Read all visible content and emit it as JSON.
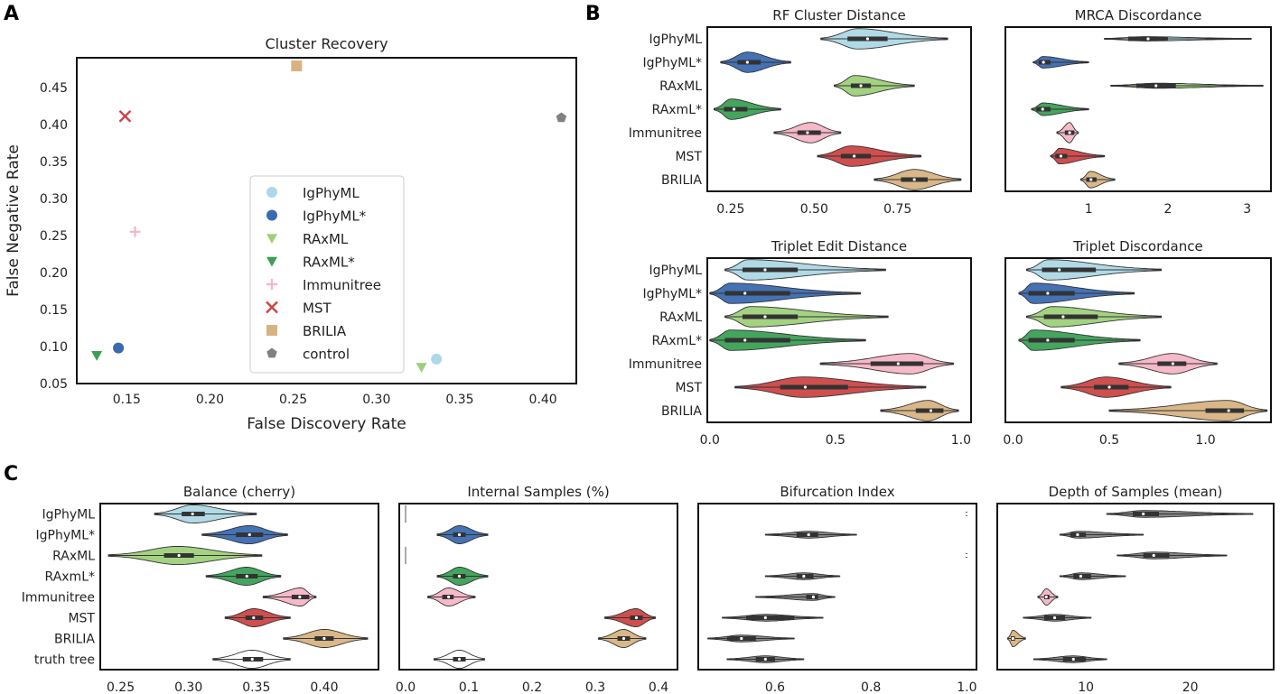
{
  "colors": {
    "IgPhyML": "#add8e6",
    "IgPhyML*": "#3a6ab0",
    "RAxML": "#9ed07a",
    "RAxML*": "#3aa055",
    "Immunitree": "#f6b5c6",
    "MST": "#cc4444",
    "BRILIA": "#d8b382",
    "control": "#808080",
    "truth tree": "#ffffff",
    "frame": "#111111",
    "text": "#222222"
  },
  "chart_data": [
    {
      "id": "A",
      "panel_label": "A",
      "type": "scatter",
      "title": "Cluster Recovery",
      "xlabel": "False Discovery Rate",
      "ylabel": "False Negative Rate",
      "xlim": [
        0.12,
        0.42
      ],
      "ylim": [
        0.05,
        0.49
      ],
      "xticks": [
        "0.15",
        "0.20",
        "0.25",
        "0.30",
        "0.35",
        "0.40"
      ],
      "yticks": [
        "0.05",
        "0.10",
        "0.15",
        "0.20",
        "0.25",
        "0.30",
        "0.35",
        "0.40",
        "0.45"
      ],
      "points": [
        {
          "name": "IgPhyML",
          "x": 0.336,
          "y": 0.083,
          "marker": "circle"
        },
        {
          "name": "IgPhyML*",
          "x": 0.145,
          "y": 0.098,
          "marker": "circle"
        },
        {
          "name": "RAxML",
          "x": 0.327,
          "y": 0.072,
          "marker": "triangle"
        },
        {
          "name": "RAxML*",
          "x": 0.132,
          "y": 0.088,
          "marker": "triangle"
        },
        {
          "name": "Immunitree",
          "x": 0.155,
          "y": 0.255,
          "marker": "plus"
        },
        {
          "name": "MST",
          "x": 0.149,
          "y": 0.411,
          "marker": "x"
        },
        {
          "name": "BRILIA",
          "x": 0.252,
          "y": 0.479,
          "marker": "square"
        },
        {
          "name": "control",
          "x": 0.411,
          "y": 0.409,
          "marker": "pentagon"
        }
      ],
      "legend": [
        "IgPhyML",
        "IgPhyML*",
        "RAxML",
        "RAxML*",
        "Immunitree",
        "MST",
        "BRILIA",
        "control"
      ],
      "legend_position": "center"
    },
    {
      "id": "B1",
      "panel_label": "B",
      "type": "violin",
      "title": "RF Cluster Distance",
      "xlim": [
        0.18,
        0.97
      ],
      "xticks": [
        "0.25",
        "0.50",
        "0.75"
      ],
      "categories": [
        "IgPhyML",
        "IgPhyML*",
        "RAxML",
        "RAxmL*",
        "Immunitree",
        "MST",
        "BRILIA"
      ],
      "series_colors": [
        "IgPhyML",
        "IgPhyML*",
        "RAxML",
        "RAxML*",
        "Immunitree",
        "MST",
        "BRILIA"
      ],
      "violins": [
        {
          "lo": 0.52,
          "q1": 0.6,
          "med": 0.66,
          "q3": 0.72,
          "hi": 0.9,
          "mode": 0.63
        },
        {
          "lo": 0.22,
          "q1": 0.27,
          "med": 0.3,
          "q3": 0.34,
          "hi": 0.43,
          "mode": 0.3
        },
        {
          "lo": 0.56,
          "q1": 0.61,
          "med": 0.64,
          "q3": 0.67,
          "hi": 0.8,
          "mode": 0.62
        },
        {
          "lo": 0.2,
          "q1": 0.23,
          "med": 0.26,
          "q3": 0.3,
          "hi": 0.4,
          "mode": 0.25
        },
        {
          "lo": 0.38,
          "q1": 0.45,
          "med": 0.48,
          "q3": 0.52,
          "hi": 0.58,
          "mode": 0.49
        },
        {
          "lo": 0.51,
          "q1": 0.58,
          "med": 0.62,
          "q3": 0.67,
          "hi": 0.82,
          "mode": 0.61
        },
        {
          "lo": 0.68,
          "q1": 0.76,
          "med": 0.8,
          "q3": 0.84,
          "hi": 0.94,
          "mode": 0.8
        }
      ]
    },
    {
      "id": "B2",
      "type": "violin",
      "title": "MRCA Discordance",
      "xlim": [
        -0.05,
        3.3
      ],
      "xticks": [
        "1",
        "2",
        "3"
      ],
      "categories": [
        "IgPhyML",
        "IgPhyML*",
        "RAxML",
        "RAxmL*",
        "Immunitree",
        "MST",
        "BRILIA"
      ],
      "series_colors": [
        "IgPhyML",
        "IgPhyML*",
        "RAxML",
        "RAxML*",
        "Immunitree",
        "MST",
        "BRILIA"
      ],
      "violins": [
        {
          "lo": 1.2,
          "q1": 1.5,
          "med": 1.75,
          "q3": 2.0,
          "hi": 3.05,
          "mode": 1.7,
          "wscale": 0.18
        },
        {
          "lo": 0.3,
          "q1": 0.37,
          "med": 0.43,
          "q3": 0.52,
          "hi": 1.0,
          "mode": 0.42,
          "wscale": 0.55
        },
        {
          "lo": 1.28,
          "q1": 1.6,
          "med": 1.85,
          "q3": 2.1,
          "hi": 3.2,
          "mode": 1.85,
          "wscale": 0.22
        },
        {
          "lo": 0.28,
          "q1": 0.34,
          "med": 0.42,
          "q3": 0.52,
          "hi": 1.0,
          "mode": 0.42,
          "wscale": 0.6
        },
        {
          "lo": 0.6,
          "q1": 0.7,
          "med": 0.76,
          "q3": 0.82,
          "hi": 0.87,
          "mode": 0.76,
          "wscale": 1.0
        },
        {
          "lo": 0.52,
          "q1": 0.58,
          "med": 0.65,
          "q3": 0.73,
          "hi": 1.2,
          "mode": 0.63,
          "wscale": 0.75
        },
        {
          "lo": 0.9,
          "q1": 0.97,
          "med": 1.03,
          "q3": 1.1,
          "hi": 1.33,
          "mode": 1.02,
          "wscale": 0.8
        }
      ]
    },
    {
      "id": "B3",
      "type": "violin",
      "title": "Triplet Edit Distance",
      "xlim": [
        -0.01,
        1.04
      ],
      "xticks": [
        "0.0",
        "0.5",
        "1.0"
      ],
      "categories": [
        "IgPhyML",
        "IgPhyML*",
        "RAxML",
        "RAxmL*",
        "Immunitree",
        "MST",
        "BRILIA"
      ],
      "series_colors": [
        "IgPhyML",
        "IgPhyML*",
        "RAxML",
        "RAxML*",
        "Immunitree",
        "MST",
        "BRILIA"
      ],
      "violins": [
        {
          "lo": 0.06,
          "q1": 0.13,
          "med": 0.22,
          "q3": 0.35,
          "hi": 0.7,
          "mode": 0.15
        },
        {
          "lo": 0.0,
          "q1": 0.06,
          "med": 0.14,
          "q3": 0.32,
          "hi": 0.6,
          "mode": 0.08
        },
        {
          "lo": 0.06,
          "q1": 0.13,
          "med": 0.22,
          "q3": 0.35,
          "hi": 0.71,
          "mode": 0.16
        },
        {
          "lo": 0.0,
          "q1": 0.06,
          "med": 0.14,
          "q3": 0.32,
          "hi": 0.62,
          "mode": 0.08
        },
        {
          "lo": 0.44,
          "q1": 0.64,
          "med": 0.75,
          "q3": 0.85,
          "hi": 0.97,
          "mode": 0.8
        },
        {
          "lo": 0.1,
          "q1": 0.28,
          "med": 0.38,
          "q3": 0.55,
          "hi": 0.86,
          "mode": 0.37
        },
        {
          "lo": 0.68,
          "q1": 0.82,
          "med": 0.88,
          "q3": 0.93,
          "hi": 0.99,
          "mode": 0.87
        }
      ]
    },
    {
      "id": "B4",
      "type": "violin",
      "title": "Triplet Discordance",
      "xlim": [
        -0.04,
        1.34
      ],
      "xticks": [
        "0.0",
        "0.5",
        "1.0"
      ],
      "categories": [
        "IgPhyML",
        "IgPhyML*",
        "RAxML",
        "RAxmL*",
        "Immunitree",
        "MST",
        "BRILIA"
      ],
      "series_colors": [
        "IgPhyML",
        "IgPhyML*",
        "RAxML",
        "RAxML*",
        "Immunitree",
        "MST",
        "BRILIA"
      ],
      "violins": [
        {
          "lo": 0.07,
          "q1": 0.15,
          "med": 0.24,
          "q3": 0.43,
          "hi": 0.77,
          "mode": 0.18
        },
        {
          "lo": 0.03,
          "q1": 0.08,
          "med": 0.18,
          "q3": 0.32,
          "hi": 0.63,
          "mode": 0.1
        },
        {
          "lo": 0.07,
          "q1": 0.16,
          "med": 0.26,
          "q3": 0.44,
          "hi": 0.77,
          "mode": 0.2
        },
        {
          "lo": 0.03,
          "q1": 0.08,
          "med": 0.18,
          "q3": 0.32,
          "hi": 0.66,
          "mode": 0.1
        },
        {
          "lo": 0.55,
          "q1": 0.75,
          "med": 0.83,
          "q3": 0.9,
          "hi": 1.06,
          "mode": 0.83
        },
        {
          "lo": 0.25,
          "q1": 0.42,
          "med": 0.5,
          "q3": 0.6,
          "hi": 0.82,
          "mode": 0.48
        },
        {
          "lo": 0.5,
          "q1": 1.0,
          "med": 1.12,
          "q3": 1.2,
          "hi": 1.32,
          "mode": 1.12
        }
      ]
    },
    {
      "id": "C1",
      "panel_label": "C",
      "type": "violin",
      "title": "Balance (cherry)",
      "xlim": [
        0.235,
        0.44
      ],
      "xticks": [
        "0.25",
        "0.30",
        "0.35",
        "0.40"
      ],
      "categories": [
        "IgPhyML",
        "IgPhyML*",
        "RAxML",
        "RAxmL*",
        "Immunitree",
        "MST",
        "BRILIA",
        "truth tree"
      ],
      "series_colors": [
        "IgPhyML",
        "IgPhyML*",
        "RAxML",
        "RAxML*",
        "Immunitree",
        "MST",
        "BRILIA",
        "truth tree"
      ],
      "violins": [
        {
          "lo": 0.275,
          "q1": 0.295,
          "med": 0.303,
          "q3": 0.312,
          "hi": 0.35,
          "mode": 0.303
        },
        {
          "lo": 0.31,
          "q1": 0.335,
          "med": 0.345,
          "q3": 0.355,
          "hi": 0.373,
          "mode": 0.345
        },
        {
          "lo": 0.241,
          "q1": 0.282,
          "med": 0.293,
          "q3": 0.304,
          "hi": 0.354,
          "mode": 0.292
        },
        {
          "lo": 0.313,
          "q1": 0.335,
          "med": 0.343,
          "q3": 0.351,
          "hi": 0.368,
          "mode": 0.343
        },
        {
          "lo": 0.355,
          "q1": 0.376,
          "med": 0.382,
          "q3": 0.389,
          "hi": 0.394,
          "mode": 0.383
        },
        {
          "lo": 0.327,
          "q1": 0.342,
          "med": 0.348,
          "q3": 0.355,
          "hi": 0.375,
          "mode": 0.348
        },
        {
          "lo": 0.37,
          "q1": 0.393,
          "med": 0.4,
          "q3": 0.407,
          "hi": 0.432,
          "mode": 0.4
        },
        {
          "lo": 0.318,
          "q1": 0.34,
          "med": 0.347,
          "q3": 0.355,
          "hi": 0.375,
          "mode": 0.347
        }
      ]
    },
    {
      "id": "C2",
      "type": "violin",
      "title": "Internal Samples (%)",
      "xlim": [
        -0.01,
        0.43
      ],
      "xticks": [
        "0.0",
        "0.1",
        "0.2",
        "0.3",
        "0.4"
      ],
      "categories": [
        "IgPhyML",
        "IgPhyML*",
        "RAxML",
        "RAxmL*",
        "Immunitree",
        "MST",
        "BRILIA",
        "truth tree"
      ],
      "series_colors": [
        "IgPhyML",
        "IgPhyML*",
        "RAxML",
        "RAxML*",
        "Immunitree",
        "MST",
        "BRILIA",
        "truth tree"
      ],
      "violins": [
        {
          "lo": 0.0,
          "q1": 0.0,
          "med": 0.0,
          "q3": 0.0,
          "hi": 0.0,
          "mode": 0.0,
          "flat": true
        },
        {
          "lo": 0.05,
          "q1": 0.075,
          "med": 0.085,
          "q3": 0.095,
          "hi": 0.13,
          "mode": 0.085
        },
        {
          "lo": 0.0,
          "q1": 0.0,
          "med": 0.0,
          "q3": 0.0,
          "hi": 0.0,
          "mode": 0.0,
          "flat": true
        },
        {
          "lo": 0.05,
          "q1": 0.075,
          "med": 0.085,
          "q3": 0.095,
          "hi": 0.13,
          "mode": 0.085
        },
        {
          "lo": 0.035,
          "q1": 0.058,
          "med": 0.068,
          "q3": 0.076,
          "hi": 0.11,
          "mode": 0.068
        },
        {
          "lo": 0.315,
          "q1": 0.355,
          "med": 0.365,
          "q3": 0.375,
          "hi": 0.395,
          "mode": 0.365
        },
        {
          "lo": 0.305,
          "q1": 0.335,
          "med": 0.345,
          "q3": 0.355,
          "hi": 0.38,
          "mode": 0.345
        },
        {
          "lo": 0.045,
          "q1": 0.075,
          "med": 0.085,
          "q3": 0.095,
          "hi": 0.125,
          "mode": 0.085
        }
      ]
    },
    {
      "id": "C3",
      "type": "violin",
      "title": "Bifurcation Index",
      "xlim": [
        0.44,
        1.02
      ],
      "xticks": [
        "0.6",
        "0.8",
        "1.0"
      ],
      "categories": [
        "IgPhyML",
        "IgPhyML*",
        "RAxML",
        "RAxmL*",
        "Immunitree",
        "MST",
        "BRILIA",
        "truth tree"
      ],
      "series_colors": [
        "control",
        "control",
        "control",
        "control",
        "control",
        "control",
        "control",
        "control"
      ],
      "violins": [
        {
          "lo": 0.998,
          "q1": 0.9985,
          "med": 0.999,
          "q3": 0.9995,
          "hi": 1.0,
          "mode": 0.999,
          "wscale": 0.15
        },
        {
          "lo": 0.58,
          "q1": 0.645,
          "med": 0.67,
          "q3": 0.69,
          "hi": 0.77,
          "mode": 0.67,
          "wscale": 0.35
        },
        {
          "lo": 0.998,
          "q1": 0.9985,
          "med": 0.999,
          "q3": 0.9995,
          "hi": 1.0,
          "mode": 0.999,
          "wscale": 0.15
        },
        {
          "lo": 0.58,
          "q1": 0.645,
          "med": 0.66,
          "q3": 0.68,
          "hi": 0.735,
          "mode": 0.66,
          "wscale": 0.35
        },
        {
          "lo": 0.56,
          "q1": 0.665,
          "med": 0.68,
          "q3": 0.69,
          "hi": 0.725,
          "mode": 0.68,
          "wscale": 0.35
        },
        {
          "lo": 0.49,
          "q1": 0.54,
          "med": 0.58,
          "q3": 0.64,
          "hi": 0.7,
          "mode": 0.58,
          "wscale": 0.35
        },
        {
          "lo": 0.46,
          "q1": 0.5,
          "med": 0.53,
          "q3": 0.56,
          "hi": 0.64,
          "mode": 0.53,
          "wscale": 0.35
        },
        {
          "lo": 0.5,
          "q1": 0.56,
          "med": 0.58,
          "q3": 0.6,
          "hi": 0.66,
          "mode": 0.58,
          "wscale": 0.35
        }
      ]
    },
    {
      "id": "C4",
      "type": "violin",
      "title": "Depth of Samples (mean)",
      "xlim": [
        1.5,
        28
      ],
      "xticks": [
        "10",
        "20"
      ],
      "categories": [
        "IgPhyML",
        "IgPhyML*",
        "RAxML",
        "RAxmL*",
        "Immunitree",
        "MST",
        "BRILIA",
        "truth tree"
      ],
      "series_colors": [
        "control",
        "control",
        "control",
        "control",
        "Immunitree",
        "control",
        "BRILIA",
        "control"
      ],
      "violins": [
        {
          "lo": 12.0,
          "q1": 14.5,
          "med": 15.5,
          "q3": 17.0,
          "hi": 26.0,
          "mode": 15.5,
          "wscale": 0.35
        },
        {
          "lo": 7.5,
          "q1": 8.5,
          "med": 9.2,
          "q3": 10.0,
          "hi": 15.5,
          "mode": 9.2,
          "wscale": 0.35
        },
        {
          "lo": 13.0,
          "q1": 15.5,
          "med": 16.5,
          "q3": 18.0,
          "hi": 23.5,
          "mode": 16.5,
          "wscale": 0.35
        },
        {
          "lo": 7.5,
          "q1": 8.8,
          "med": 9.5,
          "q3": 10.5,
          "hi": 13.8,
          "mode": 9.5,
          "wscale": 0.35
        },
        {
          "lo": 5.4,
          "q1": 6.0,
          "med": 6.2,
          "q3": 6.5,
          "hi": 7.3,
          "mode": 6.2,
          "wscale": 0.9
        },
        {
          "lo": 4.0,
          "q1": 6.0,
          "med": 7.0,
          "q3": 8.0,
          "hi": 10.5,
          "mode": 7.0,
          "wscale": 0.35
        },
        {
          "lo": 2.5,
          "q1": 2.8,
          "med": 3.0,
          "q3": 3.2,
          "hi": 4.2,
          "mode": 3.0,
          "wscale": 0.9
        },
        {
          "lo": 5.0,
          "q1": 7.8,
          "med": 8.8,
          "q3": 10.0,
          "hi": 12.0,
          "mode": 8.8,
          "wscale": 0.35
        }
      ]
    }
  ]
}
